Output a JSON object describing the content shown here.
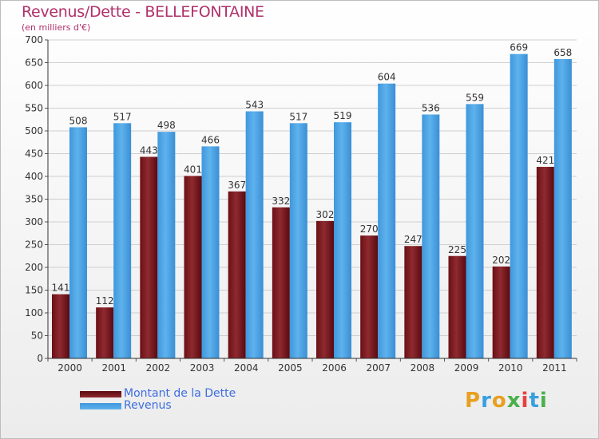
{
  "header": {
    "title": "Revenus/Dette - BELLEFONTAINE",
    "subtitle": "(en milliers d'€)"
  },
  "colors": {
    "title": "#b0306a",
    "series1": "#7a1a1f",
    "series2": "#4aa3e6",
    "legend_text": "#3d6de0"
  },
  "chart_data": {
    "type": "bar",
    "categories": [
      "2000",
      "2001",
      "2002",
      "2003",
      "2004",
      "2005",
      "2006",
      "2007",
      "2008",
      "2009",
      "2010",
      "2011"
    ],
    "series": [
      {
        "name": "Montant de la Dette",
        "values": [
          141,
          112,
          443,
          401,
          367,
          332,
          302,
          270,
          247,
          225,
          202,
          421
        ]
      },
      {
        "name": "Revenus",
        "values": [
          508,
          517,
          498,
          466,
          543,
          517,
          519,
          604,
          536,
          559,
          669,
          658
        ]
      }
    ],
    "title": "Revenus/Dette - BELLEFONTAINE",
    "ylabel": "(en milliers d'€)",
    "ylim": [
      0,
      700
    ],
    "yticks": [
      0,
      50,
      100,
      150,
      200,
      250,
      300,
      350,
      400,
      450,
      500,
      550,
      600,
      650,
      700
    ],
    "grid": true,
    "legend_position": "bottom-left"
  },
  "logo": {
    "letters": [
      "P",
      "r",
      "o",
      "x",
      "i",
      "t",
      "i"
    ],
    "colors": [
      "#e8a020",
      "#3aa0e0",
      "#e8a020",
      "#4ab04a",
      "#e84040",
      "#3aa0e0",
      "#4ab04a"
    ]
  }
}
